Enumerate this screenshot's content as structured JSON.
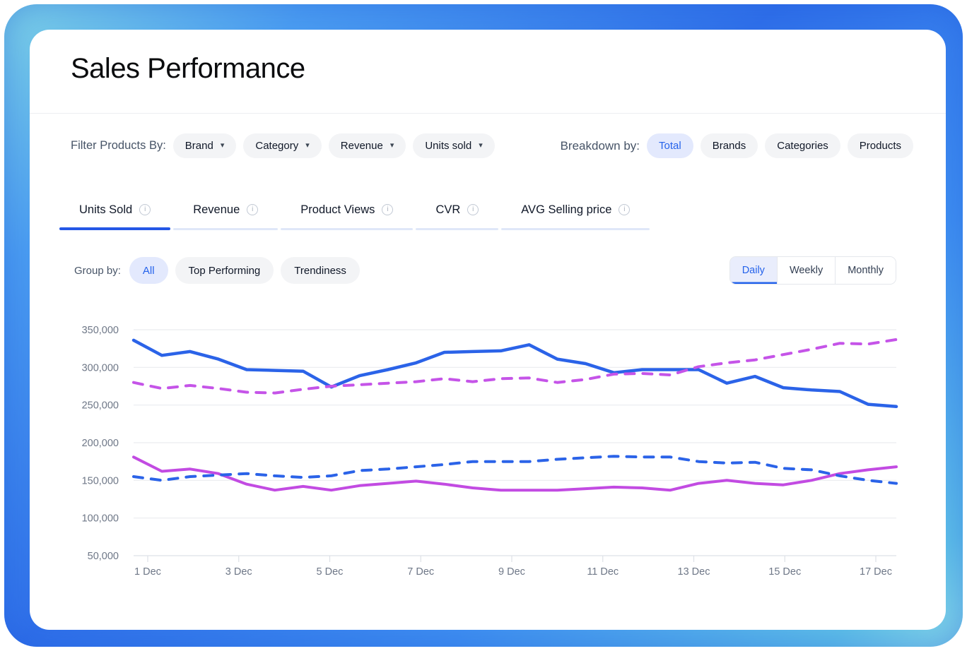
{
  "page": {
    "title": "Sales Performance"
  },
  "filters": {
    "label": "Filter Products By:",
    "dropdowns": [
      {
        "label": "Brand"
      },
      {
        "label": "Category"
      },
      {
        "label": "Revenue"
      },
      {
        "label": "Units sold"
      }
    ]
  },
  "breakdown": {
    "label": "Breakdown by:",
    "options": [
      {
        "label": "Total",
        "active": true
      },
      {
        "label": "Brands",
        "active": false
      },
      {
        "label": "Categories",
        "active": false
      },
      {
        "label": "Products",
        "active": false
      }
    ]
  },
  "metric_tabs": [
    {
      "label": "Units Sold",
      "active": true
    },
    {
      "label": "Revenue",
      "active": false
    },
    {
      "label": "Product Views",
      "active": false
    },
    {
      "label": "CVR",
      "active": false
    },
    {
      "label": "AVG Selling price",
      "active": false
    }
  ],
  "group_by": {
    "label": "Group by:",
    "options": [
      {
        "label": "All",
        "active": true
      },
      {
        "label": "Top Performing",
        "active": false
      },
      {
        "label": "Trendiness",
        "active": false
      }
    ]
  },
  "granularity": {
    "options": [
      {
        "label": "Daily",
        "active": true
      },
      {
        "label": "Weekly",
        "active": false
      },
      {
        "label": "Monthly",
        "active": false
      }
    ]
  },
  "colors": {
    "accent": "#2563EB",
    "active_pill_bg": "#E3E9FD",
    "grid_line": "#E9ECEF",
    "axis_line": "#DDE1E7",
    "axis_text": "#6E7787"
  },
  "chart_data": {
    "type": "line",
    "title": "",
    "xlabel": "",
    "ylabel": "",
    "grid": true,
    "legend_position": "none",
    "x_tick_labels": [
      "1 Dec",
      "3 Dec",
      "5 Dec",
      "7 Dec",
      "9 Dec",
      "11 Dec",
      "13 Dec",
      "15 Dec",
      "17 Dec"
    ],
    "y_tick_labels": [
      "350,000",
      "300,000",
      "250,000",
      "200,000",
      "150,000",
      "100,000",
      "50,000"
    ],
    "y_tick_values": [
      350000,
      300000,
      250000,
      200000,
      150000,
      100000,
      50000
    ],
    "ylim": [
      50000,
      350000
    ],
    "series": [
      {
        "name": "solid-blue",
        "style": "solid",
        "color": "#2B63E8",
        "width": 4.5,
        "values": [
          336000,
          316000,
          321000,
          311000,
          297000,
          296000,
          295000,
          274000,
          289000,
          297000,
          306000,
          320000,
          321000,
          322000,
          330000,
          311000,
          305000,
          293000,
          297000,
          297000,
          297000,
          279000,
          288000,
          273000,
          270000,
          268000,
          251000,
          248000
        ]
      },
      {
        "name": "dashed-purple",
        "style": "dashed",
        "color": "#C554E8",
        "width": 4,
        "values": [
          280000,
          272000,
          276000,
          272000,
          267000,
          266000,
          271000,
          275000,
          277000,
          279000,
          281000,
          285000,
          281000,
          285000,
          286000,
          280000,
          284000,
          291000,
          292000,
          290000,
          301000,
          306000,
          310000,
          317000,
          324000,
          332000,
          331000,
          337000
        ]
      },
      {
        "name": "solid-purple",
        "style": "solid",
        "color": "#C24BE2",
        "width": 4,
        "values": [
          181000,
          162000,
          165000,
          159000,
          145000,
          137000,
          142000,
          137000,
          143000,
          146000,
          149000,
          145000,
          140000,
          137000,
          137000,
          137000,
          139000,
          141000,
          140000,
          137000,
          146000,
          150000,
          146000,
          144000,
          150000,
          159000,
          164000,
          168000
        ]
      },
      {
        "name": "dashed-blue",
        "style": "dashed",
        "color": "#2B63E8",
        "width": 4,
        "values": [
          155000,
          150000,
          155000,
          157000,
          159000,
          156000,
          154000,
          156000,
          163000,
          165000,
          168000,
          171000,
          175000,
          175000,
          175000,
          178000,
          180000,
          182000,
          181000,
          181000,
          175000,
          173000,
          174000,
          166000,
          164000,
          156000,
          150000,
          146000
        ]
      }
    ]
  }
}
